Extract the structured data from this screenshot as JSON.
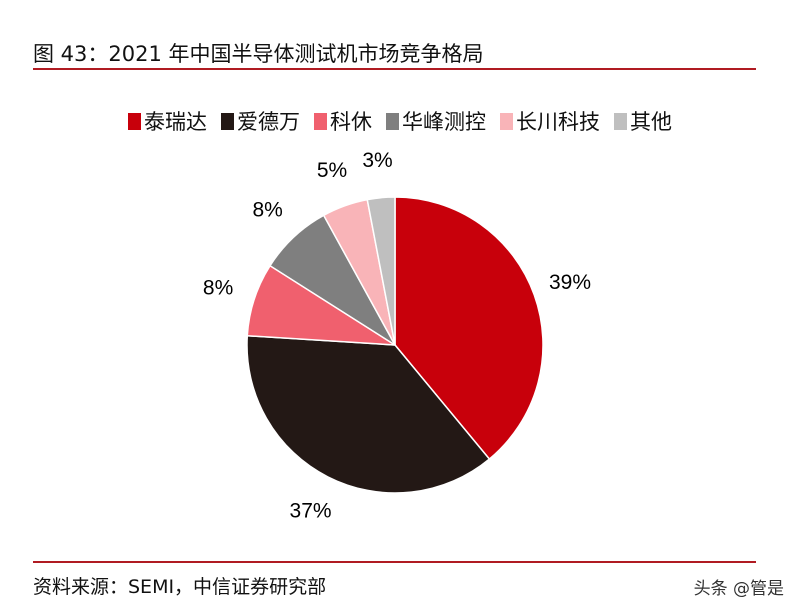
{
  "title": "图 43：2021 年中国半导体测试机市场竞争格局",
  "source": "资料来源：SEMI，中信证券研究部",
  "watermark": "头条 @管是",
  "chart_data": {
    "type": "pie",
    "title": "图 43：2021 年中国半导体测试机市场竞争格局",
    "legend_position": "top",
    "start": "top, clockwise",
    "slices": [
      {
        "name": "泰瑞达",
        "value": 39,
        "label": "39%",
        "color": "#c8000b"
      },
      {
        "name": "爱德万",
        "value": 37,
        "label": "37%",
        "color": "#231815"
      },
      {
        "name": "科休",
        "value": 8,
        "label": "8%",
        "color": "#f0606e"
      },
      {
        "name": "华峰测控",
        "value": 8,
        "label": "8%",
        "color": "#7f7f7f"
      },
      {
        "name": "长川科技",
        "value": 5,
        "label": "5%",
        "color": "#f9b4b8"
      },
      {
        "name": "其他",
        "value": 3,
        "label": "3%",
        "color": "#bfbfbf"
      }
    ]
  }
}
